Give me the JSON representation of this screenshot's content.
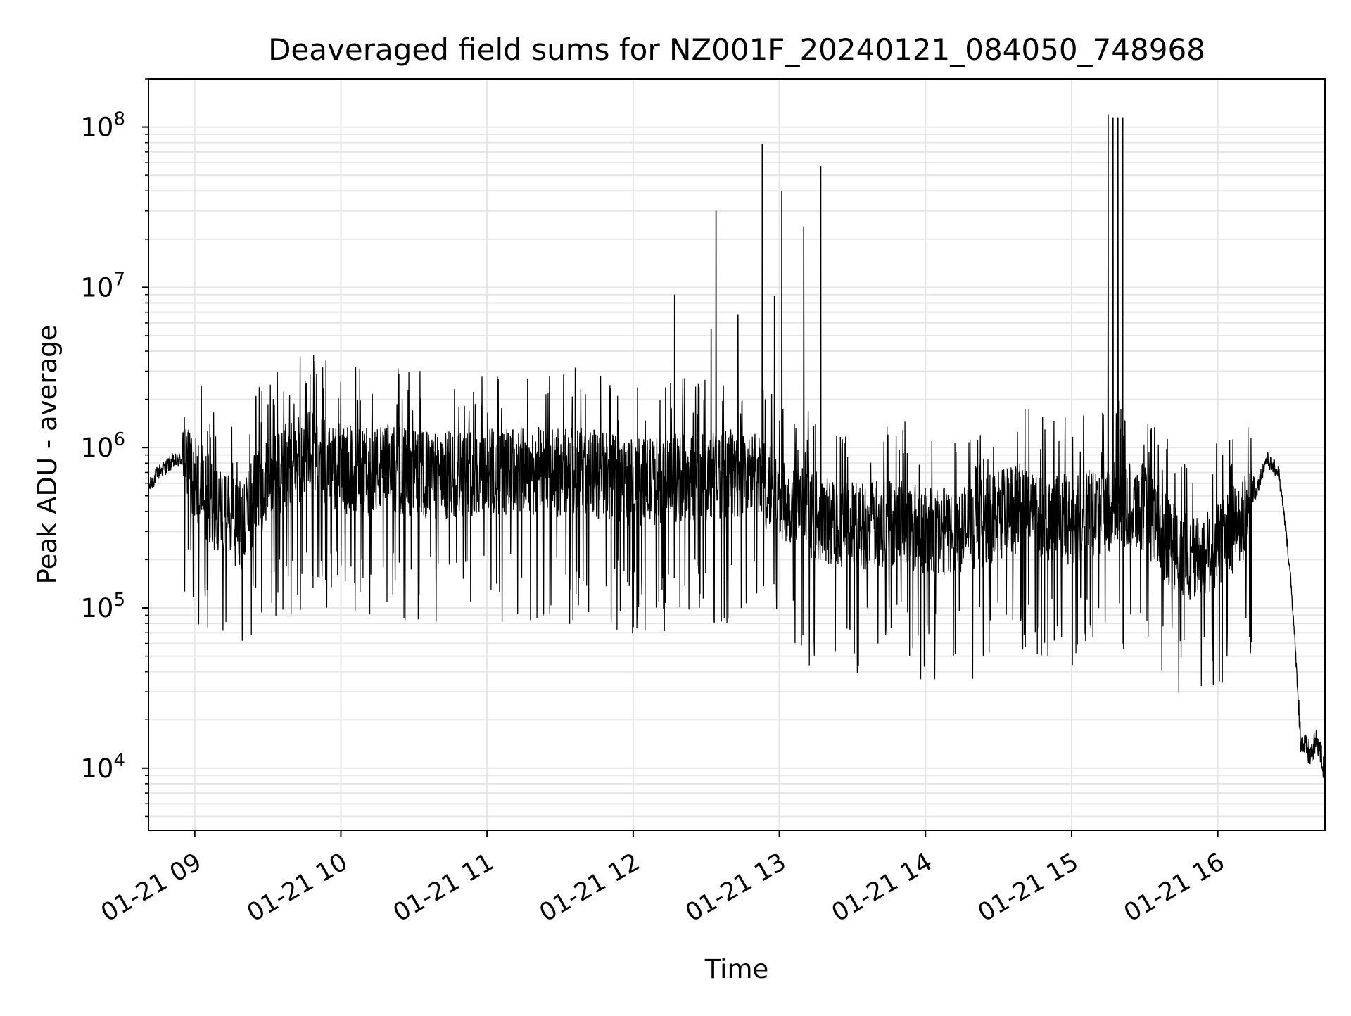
{
  "chart_data": {
    "type": "line",
    "title": "Deaveraged field sums for NZ001F_20240121_084050_748968",
    "xlabel": "Time",
    "ylabel": "Peak ADU - average",
    "x_scale": "time",
    "y_scale": "log",
    "xlim": [
      "2024-01-21 08:41",
      "2024-01-21 16:44"
    ],
    "ylim": [
      4100,
      200000000
    ],
    "x_ticks": [
      {
        "value": "2024-01-21 09:00",
        "label": "01-21 09"
      },
      {
        "value": "2024-01-21 10:00",
        "label": "01-21 10"
      },
      {
        "value": "2024-01-21 11:00",
        "label": "01-21 11"
      },
      {
        "value": "2024-01-21 12:00",
        "label": "01-21 12"
      },
      {
        "value": "2024-01-21 13:00",
        "label": "01-21 13"
      },
      {
        "value": "2024-01-21 14:00",
        "label": "01-21 14"
      },
      {
        "value": "2024-01-21 15:00",
        "label": "01-21 15"
      },
      {
        "value": "2024-01-21 16:00",
        "label": "01-21 16"
      }
    ],
    "y_ticks": [
      {
        "value": 10000,
        "base": "10",
        "exp": "4"
      },
      {
        "value": 100000,
        "base": "10",
        "exp": "5"
      },
      {
        "value": 1000000,
        "base": "10",
        "exp": "6"
      },
      {
        "value": 10000000,
        "base": "10",
        "exp": "7"
      },
      {
        "value": 100000000,
        "base": "10",
        "exp": "8"
      }
    ],
    "grid": true,
    "grid_minor_y": true,
    "line_color": "#000000",
    "grid_color": "#e6e6e6",
    "series": [
      {
        "points": [
          [
            "2024-01-21 08:41",
            560000
          ],
          [
            "2024-01-21 08:45",
            700000
          ],
          [
            "2024-01-21 08:50",
            800000
          ],
          [
            "2024-01-21 08:55",
            850000
          ],
          [
            "2024-01-21 09:00",
            700000
          ],
          [
            "2024-01-21 09:05",
            500000
          ],
          [
            "2024-01-21 09:10",
            400000
          ],
          [
            "2024-01-21 09:15",
            350000
          ],
          [
            "2024-01-21 09:20",
            330000
          ],
          [
            "2024-01-21 09:25",
            500000
          ],
          [
            "2024-01-21 09:30",
            650000
          ],
          [
            "2024-01-21 09:35",
            700000
          ],
          [
            "2024-01-21 09:40",
            800000
          ],
          [
            "2024-01-21 09:45",
            900000
          ],
          [
            "2024-01-21 09:50",
            850000
          ],
          [
            "2024-01-21 09:55",
            800000
          ],
          [
            "2024-01-21 10:00",
            750000
          ],
          [
            "2024-01-21 10:10",
            700000
          ],
          [
            "2024-01-21 10:20",
            750000
          ],
          [
            "2024-01-21 10:30",
            700000
          ],
          [
            "2024-01-21 10:40",
            650000
          ],
          [
            "2024-01-21 10:50",
            700000
          ],
          [
            "2024-01-21 11:00",
            720000
          ],
          [
            "2024-01-21 11:10",
            700000
          ],
          [
            "2024-01-21 11:20",
            720000
          ],
          [
            "2024-01-21 11:30",
            700000
          ],
          [
            "2024-01-21 11:40",
            720000
          ],
          [
            "2024-01-21 11:50",
            650000
          ],
          [
            "2024-01-21 12:00",
            600000
          ],
          [
            "2024-01-21 12:10",
            620000
          ],
          [
            "2024-01-21 12:20",
            650000
          ],
          [
            "2024-01-21 12:30",
            650000
          ],
          [
            "2024-01-21 12:40",
            700000
          ],
          [
            "2024-01-21 12:50",
            650000
          ],
          [
            "2024-01-21 13:00",
            500000
          ],
          [
            "2024-01-21 13:10",
            400000
          ],
          [
            "2024-01-21 13:20",
            350000
          ],
          [
            "2024-01-21 13:30",
            330000
          ],
          [
            "2024-01-21 13:40",
            330000
          ],
          [
            "2024-01-21 13:50",
            350000
          ],
          [
            "2024-01-21 14:00",
            300000
          ],
          [
            "2024-01-21 14:10",
            300000
          ],
          [
            "2024-01-21 14:20",
            320000
          ],
          [
            "2024-01-21 14:30",
            380000
          ],
          [
            "2024-01-21 14:40",
            420000
          ],
          [
            "2024-01-21 14:50",
            380000
          ],
          [
            "2024-01-21 15:00",
            350000
          ],
          [
            "2024-01-21 15:10",
            400000
          ],
          [
            "2024-01-21 15:20",
            450000
          ],
          [
            "2024-01-21 15:30",
            420000
          ],
          [
            "2024-01-21 15:40",
            250000
          ],
          [
            "2024-01-21 15:50",
            200000
          ],
          [
            "2024-01-21 16:00",
            250000
          ],
          [
            "2024-01-21 16:05",
            300000
          ],
          [
            "2024-01-21 16:10",
            320000
          ],
          [
            "2024-01-21 16:15",
            500000
          ],
          [
            "2024-01-21 16:20",
            850000
          ],
          [
            "2024-01-21 16:25",
            700000
          ],
          [
            "2024-01-21 16:28",
            300000
          ],
          [
            "2024-01-21 16:30",
            150000
          ],
          [
            "2024-01-21 16:32",
            50000
          ],
          [
            "2024-01-21 16:34",
            15000
          ],
          [
            "2024-01-21 16:38",
            12000
          ],
          [
            "2024-01-21 16:41",
            15000
          ],
          [
            "2024-01-21 16:44",
            9000
          ]
        ]
      }
    ],
    "spikes": [
      [
        "2024-01-21 12:17",
        9000000
      ],
      [
        "2024-01-21 12:32",
        5500000
      ],
      [
        "2024-01-21 12:34",
        30000000
      ],
      [
        "2024-01-21 12:43",
        6800000
      ],
      [
        "2024-01-21 12:53",
        78000000
      ],
      [
        "2024-01-21 12:58",
        8800000
      ],
      [
        "2024-01-21 13:01",
        40000000
      ],
      [
        "2024-01-21 13:10",
        24000000
      ],
      [
        "2024-01-21 13:17",
        57000000
      ],
      [
        "2024-01-21 15:15",
        120000000
      ],
      [
        "2024-01-21 15:17",
        115000000
      ],
      [
        "2024-01-21 15:19",
        115000000
      ],
      [
        "2024-01-21 15:21",
        115000000
      ]
    ]
  }
}
